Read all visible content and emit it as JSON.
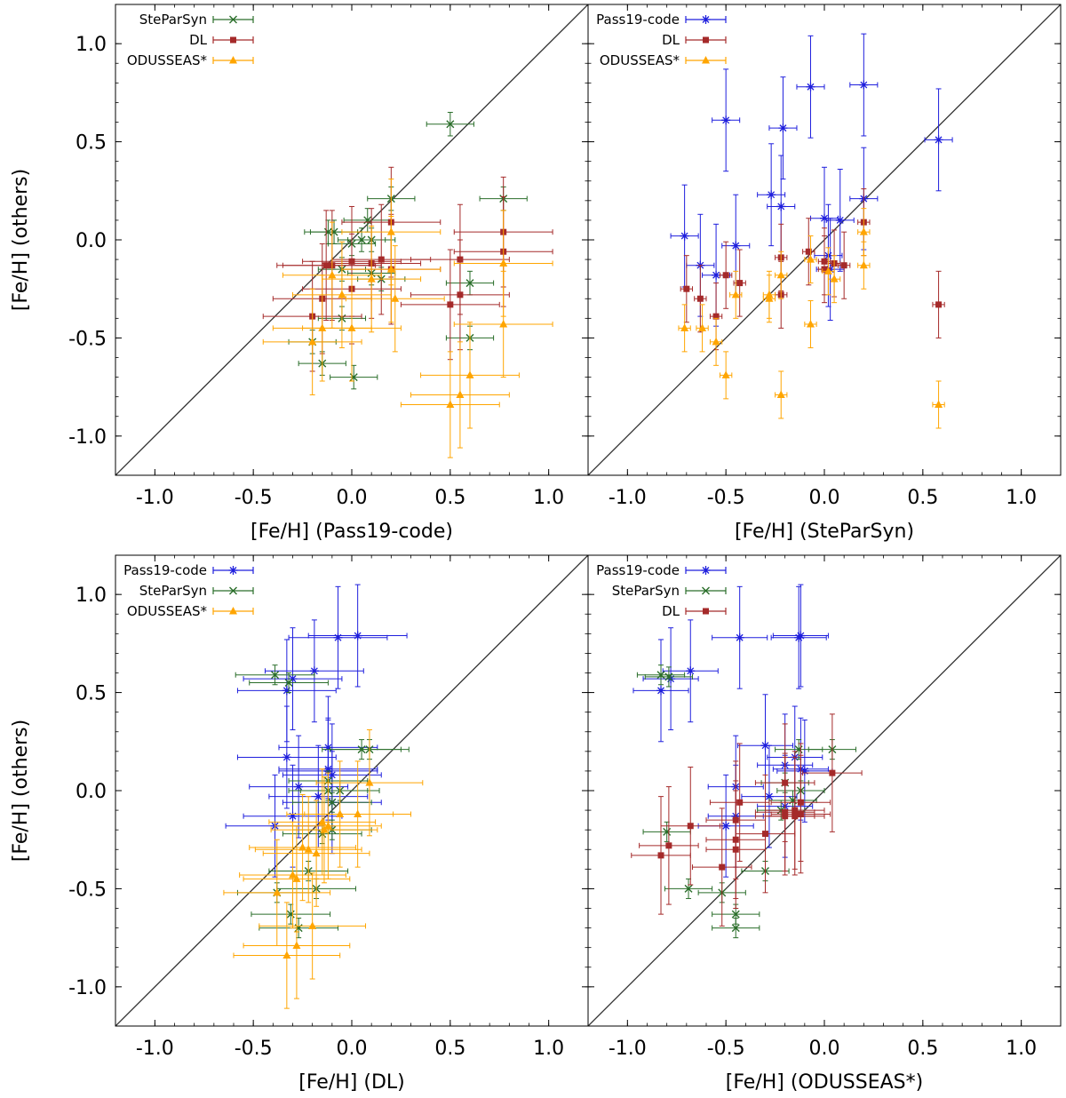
{
  "figure": {
    "shared_ylabel": "[Fe/H] (others)",
    "colors": {
      "Pass19-code": "#1f1fdd",
      "SteParSyn": "#2a6e2a",
      "DL": "#a52a2a",
      "ODUSSEAS*": "#ffa500",
      "identity": "#333333"
    }
  },
  "chart_data": [
    {
      "type": "scatter",
      "title": "",
      "xlabel": "[Fe/H] (Pass19-code)",
      "ylabel": "[Fe/H] (others)",
      "xlim": [
        -1.2,
        1.2
      ],
      "ylim": [
        -1.2,
        1.2
      ],
      "xticks": [
        "-1.0",
        "-0.5",
        "0.0",
        "0.5",
        "1.0"
      ],
      "yticks": [
        "1.0",
        "0.5",
        "0.0",
        "-0.5",
        "-1.0"
      ],
      "identity_line": true,
      "legend": {
        "position": "top-left",
        "entries": [
          "SteParSyn",
          "DL",
          "ODUSSEAS*"
        ]
      },
      "series": [
        {
          "name": "SteParSyn",
          "marker": "x",
          "xerr": 0.12,
          "yerr": 0.06,
          "points": [
            [
              0.5,
              0.59
            ],
            [
              0.77,
              0.21
            ],
            [
              0.2,
              0.21
            ],
            [
              0.08,
              0.1
            ],
            [
              -0.12,
              0.04
            ],
            [
              -0.09,
              0.04
            ],
            [
              0.05,
              0.0
            ],
            [
              0.1,
              0.0
            ],
            [
              0.0,
              -0.02
            ],
            [
              0.6,
              -0.22
            ],
            [
              -0.05,
              -0.15
            ],
            [
              0.1,
              -0.17
            ],
            [
              0.15,
              -0.2
            ],
            [
              -0.05,
              -0.4
            ],
            [
              0.6,
              -0.5
            ],
            [
              -0.2,
              -0.52
            ],
            [
              -0.15,
              -0.63
            ],
            [
              0.01,
              -0.7
            ]
          ]
        },
        {
          "name": "DL",
          "marker": "s",
          "xerr": 0.25,
          "yerr": 0.28,
          "points": [
            [
              0.77,
              0.04
            ],
            [
              0.2,
              0.09
            ],
            [
              0.77,
              -0.06
            ],
            [
              0.55,
              -0.1
            ],
            [
              0.15,
              -0.1
            ],
            [
              0.0,
              -0.11
            ],
            [
              0.1,
              -0.12
            ],
            [
              -0.1,
              -0.13
            ],
            [
              -0.13,
              -0.13
            ],
            [
              0.2,
              -0.15
            ],
            [
              0.0,
              -0.25
            ],
            [
              0.55,
              -0.28
            ],
            [
              -0.15,
              -0.3
            ],
            [
              0.5,
              -0.33
            ],
            [
              -0.2,
              -0.39
            ]
          ]
        },
        {
          "name": "ODUSSEAS*",
          "marker": "^",
          "xerr": 0.25,
          "yerr": 0.27,
          "points": [
            [
              0.2,
              0.04
            ],
            [
              0.77,
              -0.12
            ],
            [
              0.2,
              -0.15
            ],
            [
              -0.1,
              -0.18
            ],
            [
              0.1,
              -0.2
            ],
            [
              -0.05,
              -0.28
            ],
            [
              0.22,
              -0.3
            ],
            [
              -0.15,
              -0.45
            ],
            [
              0.0,
              -0.45
            ],
            [
              0.77,
              -0.43
            ],
            [
              -0.2,
              -0.52
            ],
            [
              0.6,
              -0.69
            ],
            [
              0.55,
              -0.79
            ],
            [
              0.5,
              -0.84
            ]
          ]
        }
      ]
    },
    {
      "type": "scatter",
      "title": "",
      "xlabel": "[Fe/H] (SteParSyn)",
      "ylabel": "",
      "xlim": [
        -1.2,
        1.2
      ],
      "ylim": [
        -1.2,
        1.2
      ],
      "xticks": [
        "-1.0",
        "-0.5",
        "0.0",
        "0.5",
        "1.0"
      ],
      "yticks": [],
      "identity_line": true,
      "legend": {
        "position": "top-left",
        "entries": [
          "Pass19-code",
          "DL",
          "ODUSSEAS*"
        ]
      },
      "series": [
        {
          "name": "Pass19-code",
          "marker": "*",
          "xerr": 0.07,
          "yerr": 0.26,
          "points": [
            [
              -0.07,
              0.78
            ],
            [
              0.2,
              0.79
            ],
            [
              -0.5,
              0.61
            ],
            [
              -0.21,
              0.57
            ],
            [
              0.58,
              0.51
            ],
            [
              -0.27,
              0.23
            ],
            [
              0.2,
              0.21
            ],
            [
              -0.22,
              0.17
            ],
            [
              0.0,
              0.11
            ],
            [
              0.08,
              0.1
            ],
            [
              -0.71,
              0.02
            ],
            [
              -0.45,
              -0.03
            ],
            [
              -0.63,
              -0.13
            ],
            [
              -0.55,
              -0.18
            ],
            [
              0.02,
              -0.08
            ],
            [
              0.03,
              -0.15
            ]
          ]
        },
        {
          "name": "DL",
          "marker": "s",
          "xerr": 0.03,
          "yerr": 0.17,
          "points": [
            [
              0.2,
              0.09
            ],
            [
              0.58,
              -0.33
            ],
            [
              -0.08,
              -0.06
            ],
            [
              -0.22,
              -0.09
            ],
            [
              0.0,
              -0.11
            ],
            [
              0.05,
              -0.12
            ],
            [
              0.1,
              -0.13
            ],
            [
              0.0,
              -0.15
            ],
            [
              -0.5,
              -0.18
            ],
            [
              -0.43,
              -0.22
            ],
            [
              -0.7,
              -0.25
            ],
            [
              -0.22,
              -0.28
            ],
            [
              -0.63,
              -0.3
            ],
            [
              -0.55,
              -0.39
            ]
          ]
        },
        {
          "name": "ODUSSEAS*",
          "marker": "^",
          "xerr": 0.03,
          "yerr": 0.12,
          "points": [
            [
              0.2,
              0.04
            ],
            [
              -0.07,
              -0.1
            ],
            [
              0.2,
              -0.13
            ],
            [
              0.02,
              -0.16
            ],
            [
              -0.22,
              -0.18
            ],
            [
              0.05,
              -0.2
            ],
            [
              -0.28,
              -0.28
            ],
            [
              -0.45,
              -0.28
            ],
            [
              -0.28,
              -0.3
            ],
            [
              -0.07,
              -0.43
            ],
            [
              -0.71,
              -0.45
            ],
            [
              -0.62,
              -0.45
            ],
            [
              -0.55,
              -0.52
            ],
            [
              -0.5,
              -0.69
            ],
            [
              -0.22,
              -0.79
            ],
            [
              0.58,
              -0.84
            ]
          ]
        }
      ]
    },
    {
      "type": "scatter",
      "title": "",
      "xlabel": "[Fe/H] (DL)",
      "ylabel": "[Fe/H] (others)",
      "xlim": [
        -1.2,
        1.2
      ],
      "ylim": [
        -1.2,
        1.2
      ],
      "xticks": [
        "-1.0",
        "-0.5",
        "0.0",
        "0.5",
        "1.0"
      ],
      "yticks": [
        "1.0",
        "0.5",
        "0.0",
        "-0.5",
        "-1.0"
      ],
      "identity_line": true,
      "legend": {
        "position": "top-left",
        "entries": [
          "Pass19-code",
          "SteParSyn",
          "ODUSSEAS*"
        ]
      },
      "series": [
        {
          "name": "Pass19-code",
          "marker": "*",
          "xerr": 0.25,
          "yerr": 0.26,
          "points": [
            [
              0.03,
              0.79
            ],
            [
              -0.07,
              0.78
            ],
            [
              -0.19,
              0.61
            ],
            [
              -0.3,
              0.57
            ],
            [
              -0.33,
              0.51
            ],
            [
              -0.12,
              0.22
            ],
            [
              -0.33,
              0.17
            ],
            [
              -0.12,
              0.11
            ],
            [
              -0.12,
              0.1
            ],
            [
              -0.1,
              0.08
            ],
            [
              -0.27,
              0.02
            ],
            [
              -0.17,
              -0.03
            ],
            [
              -0.3,
              -0.13
            ],
            [
              -0.39,
              -0.18
            ],
            [
              -0.1,
              -0.06
            ]
          ]
        },
        {
          "name": "SteParSyn",
          "marker": "x",
          "xerr": 0.2,
          "yerr": 0.05,
          "points": [
            [
              -0.39,
              0.59
            ],
            [
              -0.32,
              0.55
            ],
            [
              0.09,
              0.21
            ],
            [
              0.05,
              0.21
            ],
            [
              -0.12,
              0.05
            ],
            [
              -0.12,
              0.0
            ],
            [
              -0.06,
              0.0
            ],
            [
              -0.1,
              -0.06
            ],
            [
              -0.22,
              -0.41
            ],
            [
              -0.1,
              -0.2
            ],
            [
              -0.18,
              -0.5
            ],
            [
              -0.38,
              -0.52
            ],
            [
              -0.31,
              -0.63
            ],
            [
              -0.27,
              -0.7
            ],
            [
              -0.15,
              -0.22
            ]
          ]
        },
        {
          "name": "ODUSSEAS*",
          "marker": "^",
          "xerr": 0.27,
          "yerr": 0.27,
          "points": [
            [
              0.09,
              0.04
            ],
            [
              -0.06,
              -0.12
            ],
            [
              0.03,
              -0.12
            ],
            [
              -0.15,
              -0.16
            ],
            [
              -0.12,
              -0.18
            ],
            [
              -0.14,
              -0.2
            ],
            [
              -0.25,
              -0.29
            ],
            [
              -0.22,
              -0.3
            ],
            [
              -0.18,
              -0.32
            ],
            [
              -0.3,
              -0.43
            ],
            [
              -0.28,
              -0.45
            ],
            [
              -0.38,
              -0.52
            ],
            [
              -0.2,
              -0.69
            ],
            [
              -0.28,
              -0.79
            ],
            [
              -0.33,
              -0.84
            ]
          ]
        }
      ]
    },
    {
      "type": "scatter",
      "title": "",
      "xlabel": "[Fe/H] (ODUSSEAS*)",
      "ylabel": "",
      "xlim": [
        -1.2,
        1.2
      ],
      "ylim": [
        -1.2,
        1.2
      ],
      "xticks": [
        "-1.0",
        "-0.5",
        "0.0",
        "0.5",
        "1.0"
      ],
      "yticks": [],
      "identity_line": true,
      "legend": {
        "position": "top-left",
        "entries": [
          "Pass19-code",
          "SteParSyn",
          "DL"
        ]
      },
      "series": [
        {
          "name": "Pass19-code",
          "marker": "*",
          "xerr": 0.14,
          "yerr": 0.26,
          "points": [
            [
              -0.12,
              0.79
            ],
            [
              -0.13,
              0.78
            ],
            [
              -0.43,
              0.78
            ],
            [
              -0.68,
              0.61
            ],
            [
              -0.78,
              0.57
            ],
            [
              -0.83,
              0.51
            ],
            [
              -0.3,
              0.23
            ],
            [
              -0.15,
              0.17
            ],
            [
              -0.2,
              0.13
            ],
            [
              -0.12,
              0.11
            ],
            [
              -0.1,
              0.1
            ],
            [
              -0.45,
              0.02
            ],
            [
              -0.45,
              -0.13
            ],
            [
              -0.5,
              -0.18
            ],
            [
              -0.28,
              -0.03
            ],
            [
              -0.2,
              -0.08
            ]
          ]
        },
        {
          "name": "SteParSyn",
          "marker": "x",
          "xerr": 0.12,
          "yerr": 0.05,
          "points": [
            [
              -0.83,
              0.59
            ],
            [
              -0.79,
              0.58
            ],
            [
              0.04,
              0.21
            ],
            [
              -0.13,
              0.21
            ],
            [
              -0.2,
              0.04
            ],
            [
              -0.12,
              0.0
            ],
            [
              -0.16,
              -0.05
            ],
            [
              -0.22,
              -0.1
            ],
            [
              -0.8,
              -0.21
            ],
            [
              -0.3,
              -0.41
            ],
            [
              -0.69,
              -0.5
            ],
            [
              -0.52,
              -0.52
            ],
            [
              -0.45,
              -0.63
            ],
            [
              -0.45,
              -0.7
            ]
          ]
        },
        {
          "name": "DL",
          "marker": "s",
          "xerr": 0.15,
          "yerr": 0.3,
          "points": [
            [
              0.04,
              0.09
            ],
            [
              -0.2,
              0.04
            ],
            [
              -0.12,
              -0.06
            ],
            [
              -0.43,
              -0.06
            ],
            [
              -0.15,
              -0.1
            ],
            [
              -0.2,
              -0.11
            ],
            [
              -0.12,
              -0.12
            ],
            [
              -0.2,
              -0.13
            ],
            [
              -0.15,
              -0.13
            ],
            [
              -0.45,
              -0.15
            ],
            [
              -0.68,
              -0.18
            ],
            [
              -0.3,
              -0.22
            ],
            [
              -0.45,
              -0.25
            ],
            [
              -0.79,
              -0.28
            ],
            [
              -0.45,
              -0.3
            ],
            [
              -0.52,
              -0.39
            ],
            [
              -0.83,
              -0.33
            ]
          ]
        }
      ]
    }
  ]
}
